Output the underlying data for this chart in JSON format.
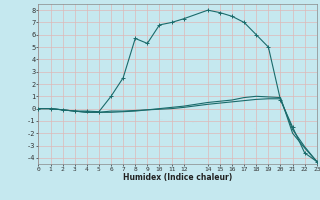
{
  "xlabel": "Humidex (Indice chaleur)",
  "bg_color": "#c5e8ef",
  "grid_color": "#deb8b8",
  "line_color": "#1a6b6b",
  "xlim": [
    0,
    23
  ],
  "ylim": [
    -4.5,
    8.5
  ],
  "xticks": [
    0,
    1,
    2,
    3,
    4,
    5,
    6,
    7,
    8,
    9,
    10,
    11,
    12,
    14,
    15,
    16,
    17,
    18,
    19,
    20,
    21,
    22,
    23
  ],
  "yticks": [
    -4,
    -3,
    -2,
    -1,
    0,
    1,
    2,
    3,
    4,
    5,
    6,
    7,
    8
  ],
  "line1_x": [
    0,
    1,
    2,
    3,
    4,
    5,
    6,
    7,
    8,
    9,
    10,
    11,
    12,
    14,
    15,
    16,
    17,
    18,
    19,
    20,
    21,
    22,
    23
  ],
  "line1_y": [
    0.0,
    0.0,
    -0.1,
    -0.2,
    -0.2,
    -0.25,
    1.0,
    2.5,
    5.7,
    5.3,
    6.8,
    7.0,
    7.3,
    8.0,
    7.8,
    7.5,
    7.0,
    6.0,
    5.0,
    0.7,
    -1.5,
    -3.6,
    -4.3
  ],
  "line2_x": [
    0,
    1,
    2,
    3,
    4,
    5,
    6,
    7,
    8,
    9,
    10,
    11,
    12,
    14,
    15,
    16,
    17,
    18,
    19,
    20,
    21,
    22,
    23
  ],
  "line2_y": [
    0.0,
    0.0,
    -0.1,
    -0.2,
    -0.3,
    -0.3,
    -0.2,
    -0.2,
    -0.15,
    -0.1,
    -0.05,
    0.0,
    0.1,
    0.35,
    0.45,
    0.55,
    0.65,
    0.75,
    0.8,
    0.8,
    -1.7,
    -3.1,
    -4.3
  ],
  "line3_x": [
    0,
    1,
    2,
    3,
    4,
    5,
    6,
    7,
    8,
    9,
    10,
    11,
    12,
    14,
    15,
    16,
    17,
    18,
    19,
    20,
    21,
    22,
    23
  ],
  "line3_y": [
    0.0,
    0.0,
    -0.1,
    -0.2,
    -0.3,
    -0.3,
    -0.3,
    -0.25,
    -0.2,
    -0.1,
    0.0,
    0.1,
    0.2,
    0.5,
    0.6,
    0.7,
    0.9,
    1.0,
    0.95,
    0.9,
    -2.0,
    -3.2,
    -4.3
  ]
}
